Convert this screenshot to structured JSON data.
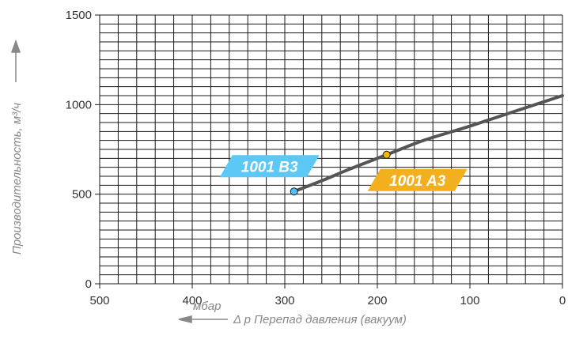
{
  "chart_data": {
    "type": "line",
    "title": "",
    "ylabel": "Производительность, м³/ч",
    "xlabel": "Δ p Перепад давления (вакуум)",
    "xunit": "мбар",
    "xlim": [
      500,
      0
    ],
    "ylim": [
      0,
      1500
    ],
    "x_ticks": [
      500,
      400,
      300,
      200,
      100,
      0
    ],
    "y_ticks": [
      0,
      500,
      1000,
      1500
    ],
    "x_grid_step": 20,
    "y_grid_step": 50,
    "grid": true,
    "series": [
      {
        "x": [
          290,
          260,
          230,
          190,
          150,
          100,
          50,
          0
        ],
        "y": [
          515,
          575,
          640,
          720,
          800,
          880,
          965,
          1050
        ],
        "color": "#555555"
      }
    ],
    "markers": [
      {
        "label": "1001 B3",
        "x": 290,
        "y": 515,
        "color": "#4fc3f7",
        "label_color": "#5bc8f5"
      },
      {
        "label": "1001 A3",
        "x": 190,
        "y": 720,
        "color": "#f5b800",
        "label_color": "#f2b01e"
      }
    ]
  }
}
